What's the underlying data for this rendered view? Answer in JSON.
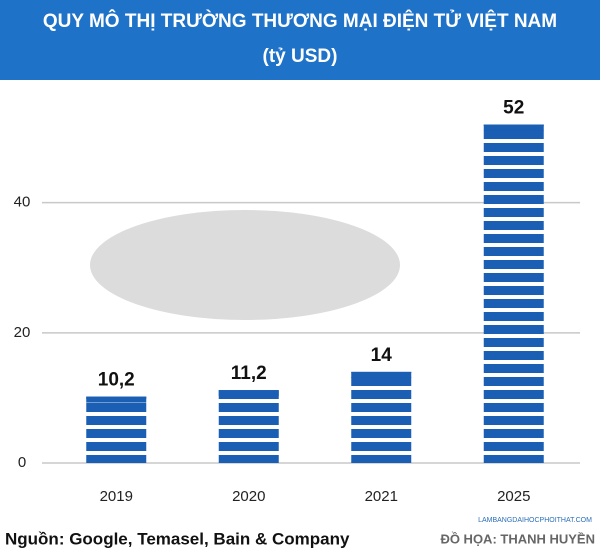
{
  "chart_data": {
    "type": "bar",
    "title": "QUY MÔ THỊ TRƯỜNG THƯƠNG MẠI ĐIỆN TỬ VIỆT NAM",
    "subtitle": "(tỷ USD)",
    "categories": [
      "2019",
      "2020",
      "2021",
      "2025"
    ],
    "values": [
      10.2,
      11.2,
      14,
      52
    ],
    "value_labels": [
      "10,2",
      "11,2",
      "14",
      "52"
    ],
    "color": "#1a5fb4",
    "ylim": [
      0,
      57
    ],
    "yticks": [
      0,
      20,
      40
    ],
    "grid": true,
    "source": "Nguồn: Google, Temasel, Bain & Company",
    "credit": "ĐỒ HỌA: THANH HUYỀN",
    "watermark": "LAMBANGDAIHOCPHOITHAT.COM"
  }
}
